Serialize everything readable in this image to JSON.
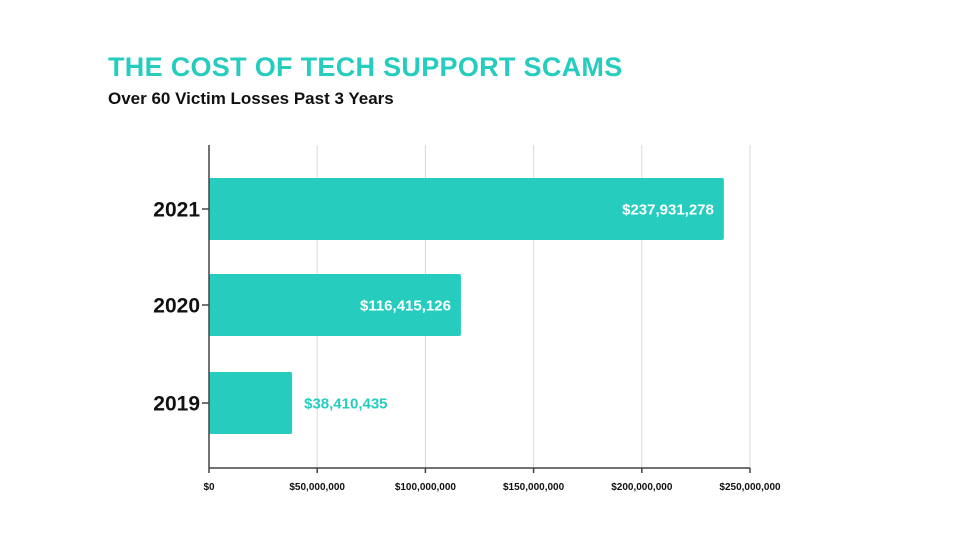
{
  "title": "THE COST OF TECH SUPPORT SCAMS",
  "subtitle": "Over 60 Victim Losses Past 3 Years",
  "colors": {
    "accent": "#26cdbf",
    "text": "#111111",
    "grid": "#d9d9d9",
    "bar_label_inside": "#ffffff"
  },
  "chart_data": {
    "type": "bar",
    "orientation": "horizontal",
    "title": "THE COST OF TECH SUPPORT SCAMS",
    "subtitle": "Over 60 Victim Losses Past 3 Years",
    "categories": [
      "2021",
      "2020",
      "2019"
    ],
    "values": [
      237931278,
      116415126,
      38410435
    ],
    "data_labels": [
      "$237,931,278",
      "$116,415,126",
      "$38,410,435"
    ],
    "xlim": [
      0,
      250000000
    ],
    "xticks": [
      0,
      50000000,
      100000000,
      150000000,
      200000000,
      250000000
    ],
    "xtick_labels": [
      "$0",
      "$50,000,000",
      "$100,000,000",
      "$150,000,000",
      "$200,000,000",
      "$250,000,000"
    ],
    "xlabel": "",
    "ylabel": "",
    "grid": "vertical",
    "legend": "none"
  }
}
